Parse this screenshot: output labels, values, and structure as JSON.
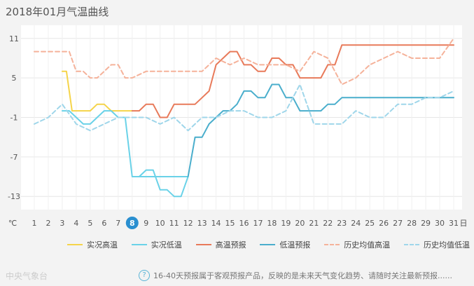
{
  "title": "2018年01月气温曲线",
  "chart_data": {
    "type": "line",
    "unit": "℃",
    "yticks": [
      11,
      5,
      -1,
      -7,
      -13
    ],
    "ylim": [
      -15,
      13
    ],
    "xticks": [
      1,
      2,
      3,
      4,
      5,
      6,
      7,
      8,
      9,
      10,
      11,
      12,
      13,
      14,
      15,
      16,
      17,
      18,
      19,
      20,
      21,
      22,
      23,
      24,
      25,
      26,
      27,
      28,
      29,
      30,
      31
    ],
    "xunit": "日",
    "today": 8,
    "today_label": "8",
    "series": [
      {
        "name": "实况高温",
        "color": "#f5d44a",
        "dash": false,
        "x": [
          3,
          3.3,
          3.7,
          4,
          4.5,
          5,
          5.5,
          6,
          6.5,
          7,
          7.5,
          8
        ],
        "y": [
          6,
          6,
          0,
          0,
          0,
          0,
          1,
          1,
          0,
          0,
          0,
          0
        ]
      },
      {
        "name": "实况低温",
        "color": "#6ad2e8",
        "dash": false,
        "x": [
          3,
          3.5,
          4,
          4.5,
          5,
          5.5,
          6,
          6.5,
          7,
          7.5,
          8,
          8.5,
          9,
          9.5,
          10,
          10.5,
          11,
          11.5,
          12,
          8,
          8
        ],
        "y": [
          0,
          0,
          -1,
          -2,
          -2,
          -1,
          0,
          0,
          -1,
          -1,
          -10,
          -10,
          -9,
          -9,
          -12,
          -12,
          -13,
          -13,
          -10,
          -10,
          -10
        ]
      },
      {
        "name": "高温预报",
        "color": "#e87a5a",
        "dash": false,
        "x": [
          8,
          8.5,
          9,
          9.5,
          10,
          10.5,
          11,
          11.5,
          12,
          12.5,
          13,
          13.5,
          14,
          14.5,
          15,
          15.5,
          16,
          16.5,
          17,
          17.5,
          18,
          18.5,
          19,
          19.5,
          20,
          20.5,
          21,
          21.5,
          22,
          22.5,
          23,
          24,
          25,
          26,
          27,
          28,
          29,
          30,
          31
        ],
        "y": [
          0,
          0,
          1,
          1,
          -1,
          -1,
          1,
          1,
          1,
          1,
          2,
          3,
          7,
          8,
          9,
          9,
          7,
          7,
          6,
          6,
          8,
          8,
          7,
          7,
          5,
          5,
          5,
          5,
          7,
          7,
          10,
          10,
          10,
          10,
          10,
          10,
          10,
          10,
          10
        ]
      },
      {
        "name": "低温预报",
        "color": "#4aaecc",
        "dash": false,
        "x": [
          12,
          12.5,
          13,
          13.5,
          14,
          14.5,
          15,
          15.5,
          16,
          16.5,
          17,
          17.5,
          18,
          18.5,
          19,
          19.5,
          20,
          20.5,
          21,
          21.5,
          22,
          22.5,
          23,
          24,
          25,
          26,
          27,
          28,
          29,
          30,
          31
        ],
        "y": [
          -10,
          -4,
          -4,
          -2,
          -1,
          0,
          0,
          1,
          3,
          3,
          2,
          2,
          4,
          4,
          2,
          2,
          0,
          0,
          0,
          0,
          1,
          1,
          2,
          2,
          2,
          2,
          2,
          2,
          2,
          2,
          2
        ]
      },
      {
        "name": "历史均值高温",
        "color": "#f5b29a",
        "dash": true,
        "x": [
          1,
          2,
          3,
          3.5,
          4,
          4.5,
          5,
          5.5,
          6,
          6.5,
          7,
          7.5,
          8,
          9,
          10,
          11,
          12,
          13,
          14,
          15,
          16,
          17,
          18,
          19,
          20,
          21,
          22,
          23,
          24,
          25,
          26,
          27,
          28,
          29,
          30,
          31
        ],
        "y": [
          9,
          9,
          9,
          9,
          6,
          6,
          5,
          5,
          6,
          7,
          7,
          5,
          5,
          6,
          6,
          6,
          6,
          6,
          8,
          7,
          8,
          7,
          7,
          7,
          6,
          9,
          8,
          4,
          5,
          7,
          8,
          9,
          8,
          8,
          8,
          11
        ]
      },
      {
        "name": "历史均值低温",
        "color": "#9fd6ea",
        "dash": true,
        "x": [
          1,
          2,
          3,
          4,
          5,
          6,
          7,
          8,
          9,
          10,
          11,
          12,
          13,
          14,
          15,
          16,
          17,
          18,
          19,
          20,
          21,
          22,
          23,
          24,
          25,
          26,
          27,
          28,
          29,
          30,
          31
        ],
        "y": [
          -2,
          -1,
          1,
          -2,
          -3,
          -2,
          -1,
          -1,
          -1,
          -2,
          -1,
          -3,
          -1,
          -1,
          0,
          0,
          -1,
          -1,
          0,
          4,
          -2,
          -2,
          -2,
          0,
          -1,
          -1,
          1,
          1,
          2,
          2,
          3
        ]
      }
    ]
  },
  "footer": {
    "logo": "中央气象台",
    "help_icon": "question-icon",
    "note": "16-40天预报属于客观预报产品，反映的是未来天气变化趋势、请随时关注最新预报......"
  }
}
